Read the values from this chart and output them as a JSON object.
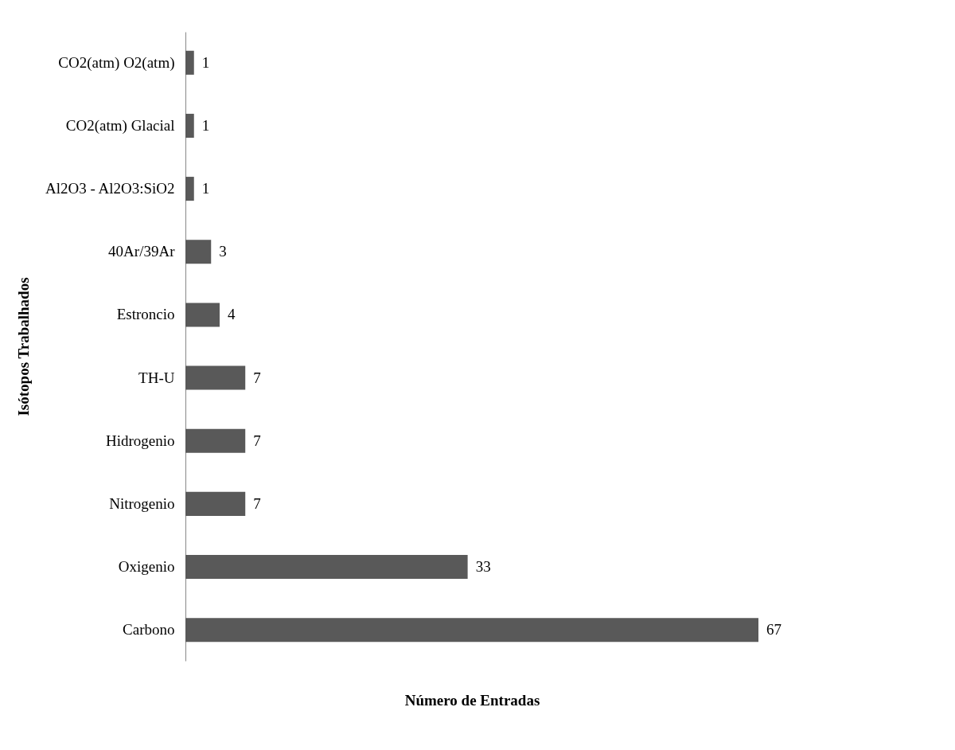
{
  "chart_data": {
    "type": "bar",
    "orientation": "horizontal",
    "xlabel": "Número de Entradas",
    "ylabel": "Isótopos Trabalhados",
    "categories": [
      "CO2(atm) O2(atm)",
      "CO2(atm) Glacial",
      "Al2O3 - Al2O3:SiO2",
      "40Ar/39Ar",
      "Estroncio",
      "TH-U",
      "Hidrogenio",
      "Nitrogenio",
      "Oxigenio",
      "Carbono"
    ],
    "values": [
      1,
      1,
      1,
      3,
      4,
      7,
      7,
      7,
      33,
      67
    ],
    "color": "#595959",
    "data_labels": true,
    "grid": false
  }
}
